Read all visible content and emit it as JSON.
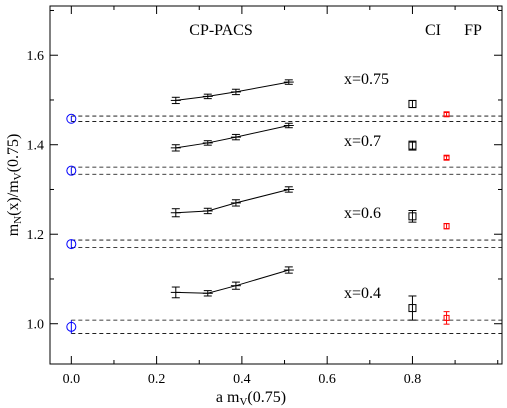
{
  "chart_data": {
    "type": "scatter",
    "title": "",
    "xlabel": {
      "main": "a m",
      "sub": "V",
      "tail": "(0.75)"
    },
    "ylabel": {
      "m1": "m",
      "s1": "N",
      "m2": "(x)/m",
      "s2": "V",
      "m3": "(0.75)"
    },
    "xlim": [
      -0.05,
      1.01
    ],
    "ylim": [
      0.91,
      1.71
    ],
    "x_ticks": [
      0.0,
      0.2,
      0.4,
      0.6,
      0.8
    ],
    "x_tick_labels": [
      "0.0",
      "0.2",
      "0.4",
      "0.6",
      "0.8"
    ],
    "y_ticks": [
      1.0,
      1.2,
      1.4,
      1.6
    ],
    "y_tick_labels": [
      "1.0",
      "1.2",
      "1.4",
      "1.6"
    ],
    "grid": false,
    "headers": {
      "cppacs": "CP-PACS",
      "ci": "CI",
      "fp": "FP"
    },
    "series": [
      {
        "annotation": "x=0.4",
        "cppacs": {
          "x": [
            0.245,
            0.32,
            0.386,
            0.51
          ],
          "y": [
            1.07,
            1.068,
            1.085,
            1.12
          ],
          "err": [
            0.012,
            0.006,
            0.008,
            0.007
          ]
        },
        "continuum": {
          "x": 0.0,
          "y": 0.993,
          "err": 0.015,
          "band": [
            0.978,
            1.008
          ]
        },
        "ci": {
          "x": 0.8,
          "y": 1.035,
          "err": 0.027
        },
        "fp": {
          "x": 0.88,
          "y": 1.013,
          "err": 0.014
        }
      },
      {
        "annotation": "x=0.6",
        "cppacs": {
          "x": [
            0.245,
            0.32,
            0.386,
            0.51
          ],
          "y": [
            1.248,
            1.252,
            1.27,
            1.3
          ],
          "err": [
            0.009,
            0.006,
            0.007,
            0.006
          ]
        },
        "continuum": {
          "x": 0.0,
          "y": 1.178,
          "err": 0.009,
          "band": [
            1.17,
            1.187
          ]
        },
        "ci": {
          "x": 0.8,
          "y": 1.24,
          "err": 0.013
        },
        "fp": {
          "x": 0.88,
          "y": 1.218,
          "err": 0.006
        }
      },
      {
        "annotation": "x=0.7",
        "cppacs": {
          "x": [
            0.245,
            0.32,
            0.386,
            0.51
          ],
          "y": [
            1.393,
            1.404,
            1.417,
            1.443
          ],
          "err": [
            0.007,
            0.005,
            0.006,
            0.005
          ]
        },
        "continuum": {
          "x": 0.0,
          "y": 1.342,
          "err": 0.007,
          "band": [
            1.334,
            1.35
          ]
        },
        "ci": {
          "x": 0.8,
          "y": 1.398,
          "err": 0.01
        },
        "fp": {
          "x": 0.88,
          "y": 1.371,
          "err": 0.004
        }
      },
      {
        "annotation": "x=0.75",
        "cppacs": {
          "x": [
            0.245,
            0.32,
            0.386,
            0.51
          ],
          "y": [
            1.499,
            1.508,
            1.518,
            1.54
          ],
          "err": [
            0.007,
            0.005,
            0.006,
            0.005
          ]
        },
        "continuum": {
          "x": 0.0,
          "y": 1.458,
          "err": 0.006,
          "band": [
            1.452,
            1.464
          ]
        },
        "ci": {
          "x": 0.8,
          "y": 1.491,
          "err": 0.008
        },
        "fp": {
          "x": 0.88,
          "y": 1.468,
          "err": 0.004
        }
      }
    ],
    "colors": {
      "cppacs": "#000000",
      "continuum": "#0000ff",
      "ci": "#000000",
      "fp": "#ff0000",
      "band": "#000000"
    }
  }
}
